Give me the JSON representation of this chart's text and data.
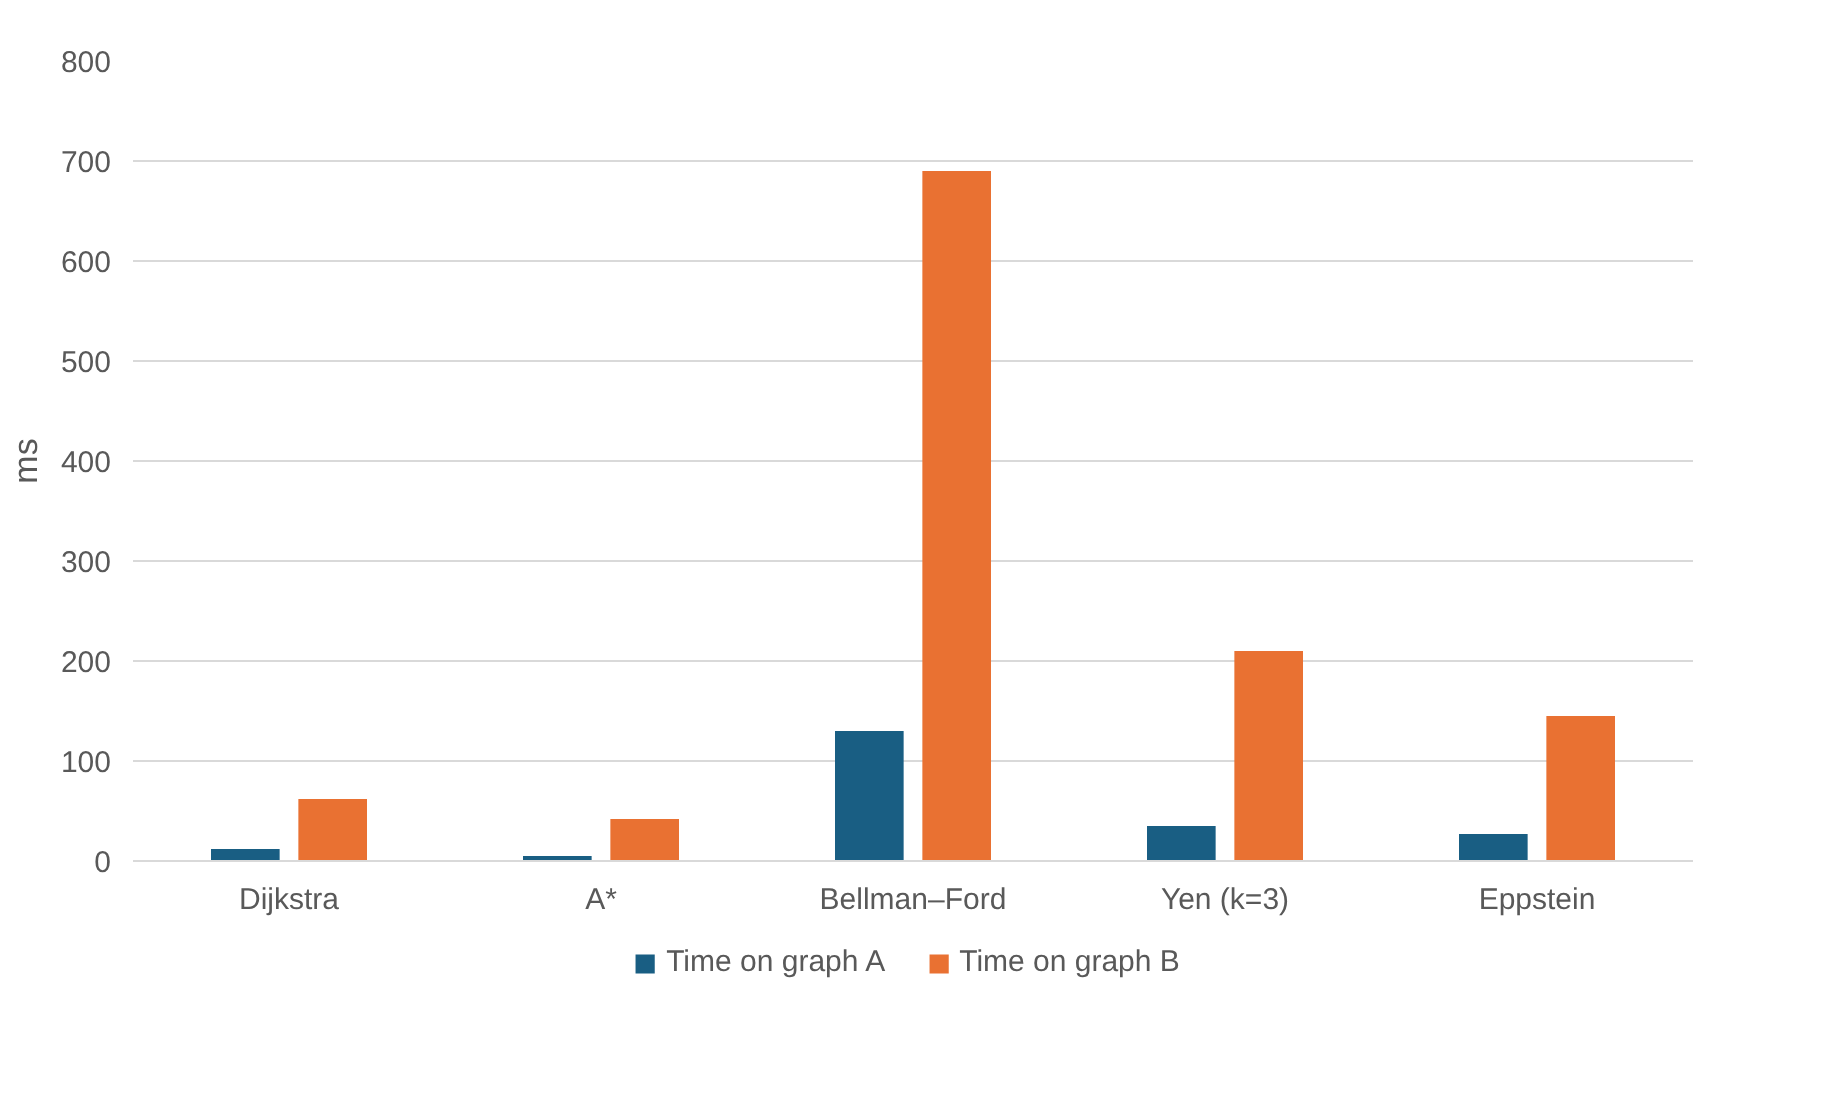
{
  "chart_data": {
    "type": "bar",
    "ylabel": "ms",
    "categories": [
      "Dijkstra",
      "A*",
      "Bellman–Ford",
      "Yen (k=3)",
      "Eppstein"
    ],
    "series": [
      {
        "name": "Time on graph A",
        "color": "#195e83",
        "values": [
          12,
          5,
          130,
          35,
          27
        ]
      },
      {
        "name": "Time on graph B",
        "color": "#e97132",
        "values": [
          62,
          42,
          690,
          210,
          145
        ]
      }
    ],
    "ylim": [
      0,
      800
    ],
    "yticks": [
      0,
      100,
      200,
      300,
      400,
      500,
      600,
      700,
      800
    ],
    "grid": "y",
    "legend": "bottom"
  }
}
